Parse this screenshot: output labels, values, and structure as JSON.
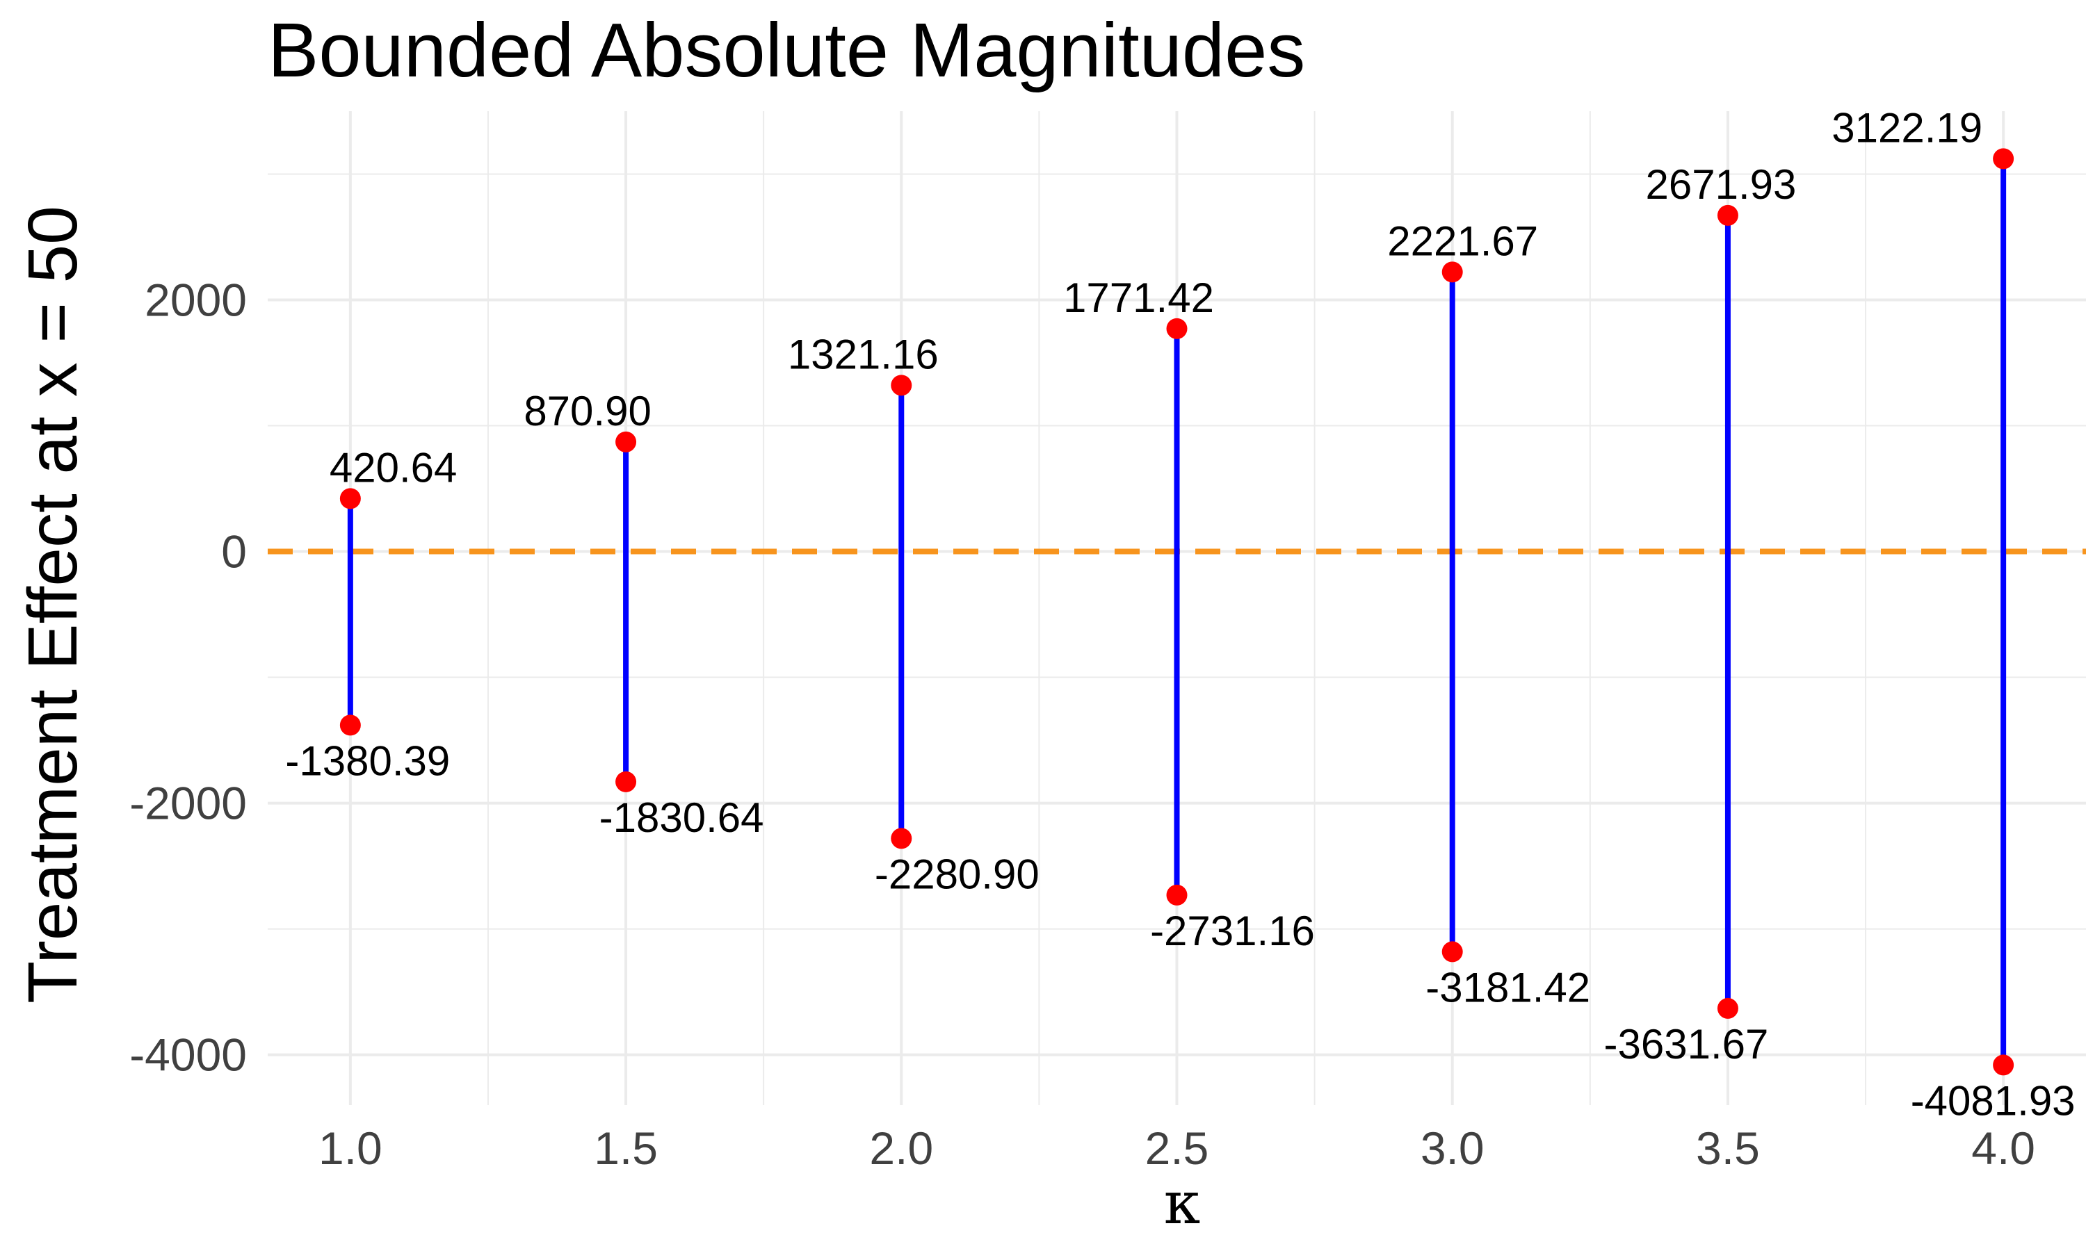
{
  "chart_data": {
    "type": "scatter",
    "title": "Bounded Absolute Magnitudes",
    "xlabel": "κ",
    "ylabel": "Treatment Effect at x = 50",
    "x": [
      1.0,
      1.5,
      2.0,
      2.5,
      3.0,
      3.5,
      4.0
    ],
    "upper": [
      420.64,
      870.9,
      1321.16,
      1771.42,
      2221.67,
      2671.93,
      3122.19
    ],
    "lower": [
      -1380.39,
      -1830.64,
      -2280.9,
      -2731.16,
      -3181.42,
      -3631.67,
      -4081.93
    ],
    "upper_labels": [
      "420.64",
      "870.90",
      "1321.16",
      "1771.42",
      "2221.67",
      "2671.93",
      "3122.19"
    ],
    "lower_labels": [
      "-1380.39",
      "-1830.64",
      "-2280.90",
      "-2731.16",
      "-3181.42",
      "-3631.67",
      "-4081.93"
    ],
    "x_ticks": [
      1.0,
      1.5,
      2.0,
      2.5,
      3.0,
      3.5,
      4.0
    ],
    "x_tick_labels": [
      "1.0",
      "1.5",
      "2.0",
      "2.5",
      "3.0",
      "3.5",
      "4.0"
    ],
    "y_ticks": [
      2000,
      0,
      -2000,
      -4000
    ],
    "y_tick_labels": [
      "2000",
      "0",
      "-2000",
      "-4000"
    ],
    "xlim": [
      0.85,
      4.15
    ],
    "ylim": [
      -4400,
      3500
    ],
    "reference_line": 0,
    "grid": true,
    "legend": "none",
    "colors": {
      "segment": "#0000FF",
      "point": "#FF0000",
      "reference": "#F7941D",
      "grid": "#EBEBEB"
    }
  }
}
